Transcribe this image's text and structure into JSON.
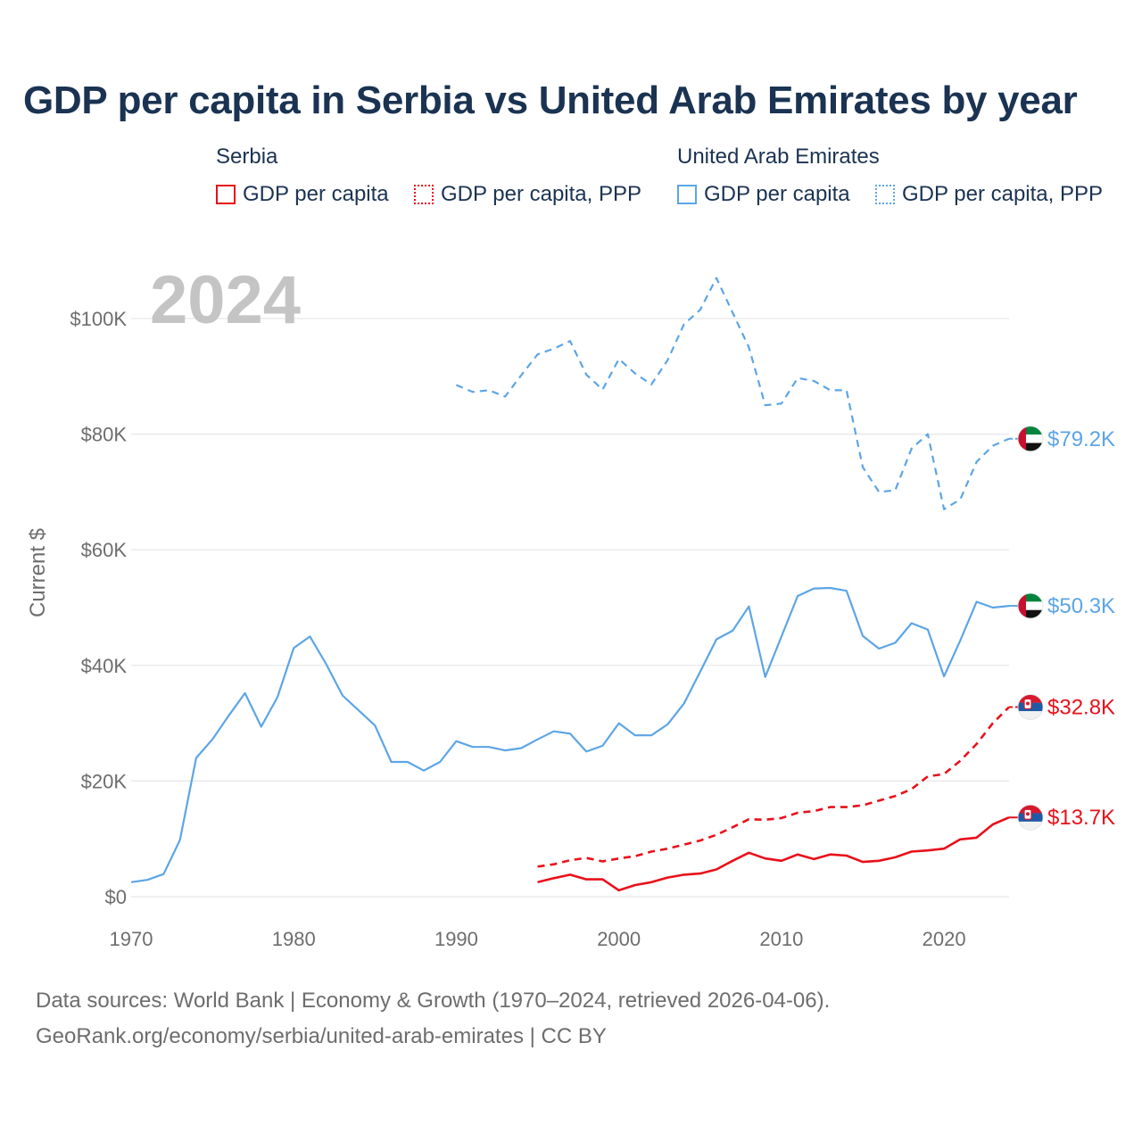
{
  "title": "GDP per capita in Serbia vs United Arab Emirates by year",
  "legend": {
    "groups": [
      {
        "name": "Serbia",
        "items": [
          "GDP per capita",
          "GDP per capita, PPP"
        ],
        "color": "#e8101a"
      },
      {
        "name": "United Arab Emirates",
        "items": [
          "GDP per capita",
          "GDP per capita, PPP"
        ],
        "color": "#5ca5e6"
      }
    ]
  },
  "chart_data": {
    "type": "line",
    "title": "GDP per capita in Serbia vs United Arab Emirates by year",
    "year_label": "2024",
    "xlabel": "",
    "ylabel": "Current $",
    "xlim": [
      1970,
      2024
    ],
    "ylim": [
      0,
      110000
    ],
    "x_ticks": [
      1970,
      1980,
      1990,
      2000,
      2010,
      2020
    ],
    "x_tick_labels": [
      "1970",
      "1980",
      "1990",
      "2000",
      "2010",
      "2020"
    ],
    "y_ticks": [
      0,
      20000,
      40000,
      60000,
      80000,
      100000
    ],
    "y_tick_labels": [
      "$0",
      "$20K",
      "$40K",
      "$60K",
      "$80K",
      "$100K"
    ],
    "grid": true,
    "series": [
      {
        "name": "United Arab Emirates GDP per capita, PPP",
        "country": "United Arab Emirates",
        "color": "#5ca5e6",
        "dash": "dashed",
        "end_label": "$79.2K",
        "x": [
          1990,
          1991,
          1992,
          1993,
          1994,
          1995,
          1996,
          1997,
          1998,
          1999,
          2000,
          2001,
          2002,
          2003,
          2004,
          2005,
          2006,
          2007,
          2008,
          2009,
          2010,
          2011,
          2012,
          2013,
          2014,
          2015,
          2016,
          2017,
          2018,
          2019,
          2020,
          2021,
          2022,
          2023,
          2024
        ],
        "values": [
          88500,
          87300,
          87600,
          86500,
          90200,
          93800,
          94800,
          96100,
          90300,
          87700,
          93000,
          90500,
          88600,
          92800,
          99000,
          101500,
          107000,
          101000,
          95000,
          85000,
          85300,
          89700,
          89200,
          87600,
          87600,
          74300,
          70000,
          70300,
          77500,
          80000,
          67000,
          68700,
          75200,
          78000,
          79200
        ]
      },
      {
        "name": "United Arab Emirates GDP per capita",
        "country": "United Arab Emirates",
        "color": "#5ca5e6",
        "dash": "solid",
        "end_label": "$50.3K",
        "x": [
          1970,
          1971,
          1972,
          1973,
          1974,
          1975,
          1976,
          1977,
          1978,
          1979,
          1980,
          1981,
          1982,
          1983,
          1984,
          1985,
          1986,
          1987,
          1988,
          1989,
          1990,
          1991,
          1992,
          1993,
          1994,
          1995,
          1996,
          1997,
          1998,
          1999,
          2000,
          2001,
          2002,
          2003,
          2004,
          2005,
          2006,
          2007,
          2008,
          2009,
          2010,
          2011,
          2012,
          2013,
          2014,
          2015,
          2016,
          2017,
          2018,
          2019,
          2020,
          2021,
          2022,
          2023,
          2024
        ],
        "values": [
          2500,
          2900,
          3900,
          9800,
          24000,
          27200,
          31300,
          35200,
          29400,
          34500,
          43000,
          45000,
          40200,
          34800,
          32200,
          29600,
          23300,
          23300,
          21800,
          23300,
          26900,
          25900,
          25900,
          25300,
          25700,
          27200,
          28600,
          28200,
          25100,
          26100,
          30000,
          27900,
          27900,
          29800,
          33400,
          38900,
          44500,
          46000,
          50200,
          38000,
          45000,
          52000,
          53300,
          53400,
          52900,
          45100,
          42900,
          43900,
          47300,
          46200,
          38100,
          44300,
          51000,
          50000,
          50300
        ]
      },
      {
        "name": "Serbia GDP per capita, PPP",
        "country": "Serbia",
        "color": "#e8101a",
        "dash": "dashed",
        "end_label": "$32.8K",
        "x": [
          1995,
          1996,
          1997,
          1998,
          1999,
          2000,
          2001,
          2002,
          2003,
          2004,
          2005,
          2006,
          2007,
          2008,
          2009,
          2010,
          2011,
          2012,
          2013,
          2014,
          2015,
          2016,
          2017,
          2018,
          2019,
          2020,
          2021,
          2022,
          2023,
          2024
        ],
        "values": [
          5200,
          5600,
          6300,
          6700,
          6100,
          6600,
          7000,
          7800,
          8300,
          9000,
          9700,
          10700,
          12000,
          13400,
          13300,
          13600,
          14500,
          14800,
          15500,
          15500,
          15800,
          16600,
          17400,
          18600,
          20800,
          21200,
          23500,
          26400,
          30000,
          32800
        ]
      },
      {
        "name": "Serbia GDP per capita",
        "country": "Serbia",
        "color": "#e8101a",
        "dash": "solid",
        "end_label": "$13.7K",
        "x": [
          1995,
          1996,
          1997,
          1998,
          1999,
          2000,
          2001,
          2002,
          2003,
          2004,
          2005,
          2006,
          2007,
          2008,
          2009,
          2010,
          2011,
          2012,
          2013,
          2014,
          2015,
          2016,
          2017,
          2018,
          2019,
          2020,
          2021,
          2022,
          2023,
          2024
        ],
        "values": [
          2500,
          3200,
          3800,
          3000,
          3000,
          1100,
          2000,
          2500,
          3300,
          3800,
          4000,
          4700,
          6200,
          7600,
          6600,
          6200,
          7300,
          6500,
          7300,
          7100,
          6000,
          6200,
          6800,
          7800,
          8000,
          8300,
          9900,
          10200,
          12500,
          13700
        ]
      }
    ]
  },
  "footer": {
    "line1": "Data sources: World Bank | Economy & Growth (1970–2024, retrieved 2026-04-06).",
    "line2": "GeoRank.org/economy/serbia/united-arab-emirates | CC BY"
  }
}
